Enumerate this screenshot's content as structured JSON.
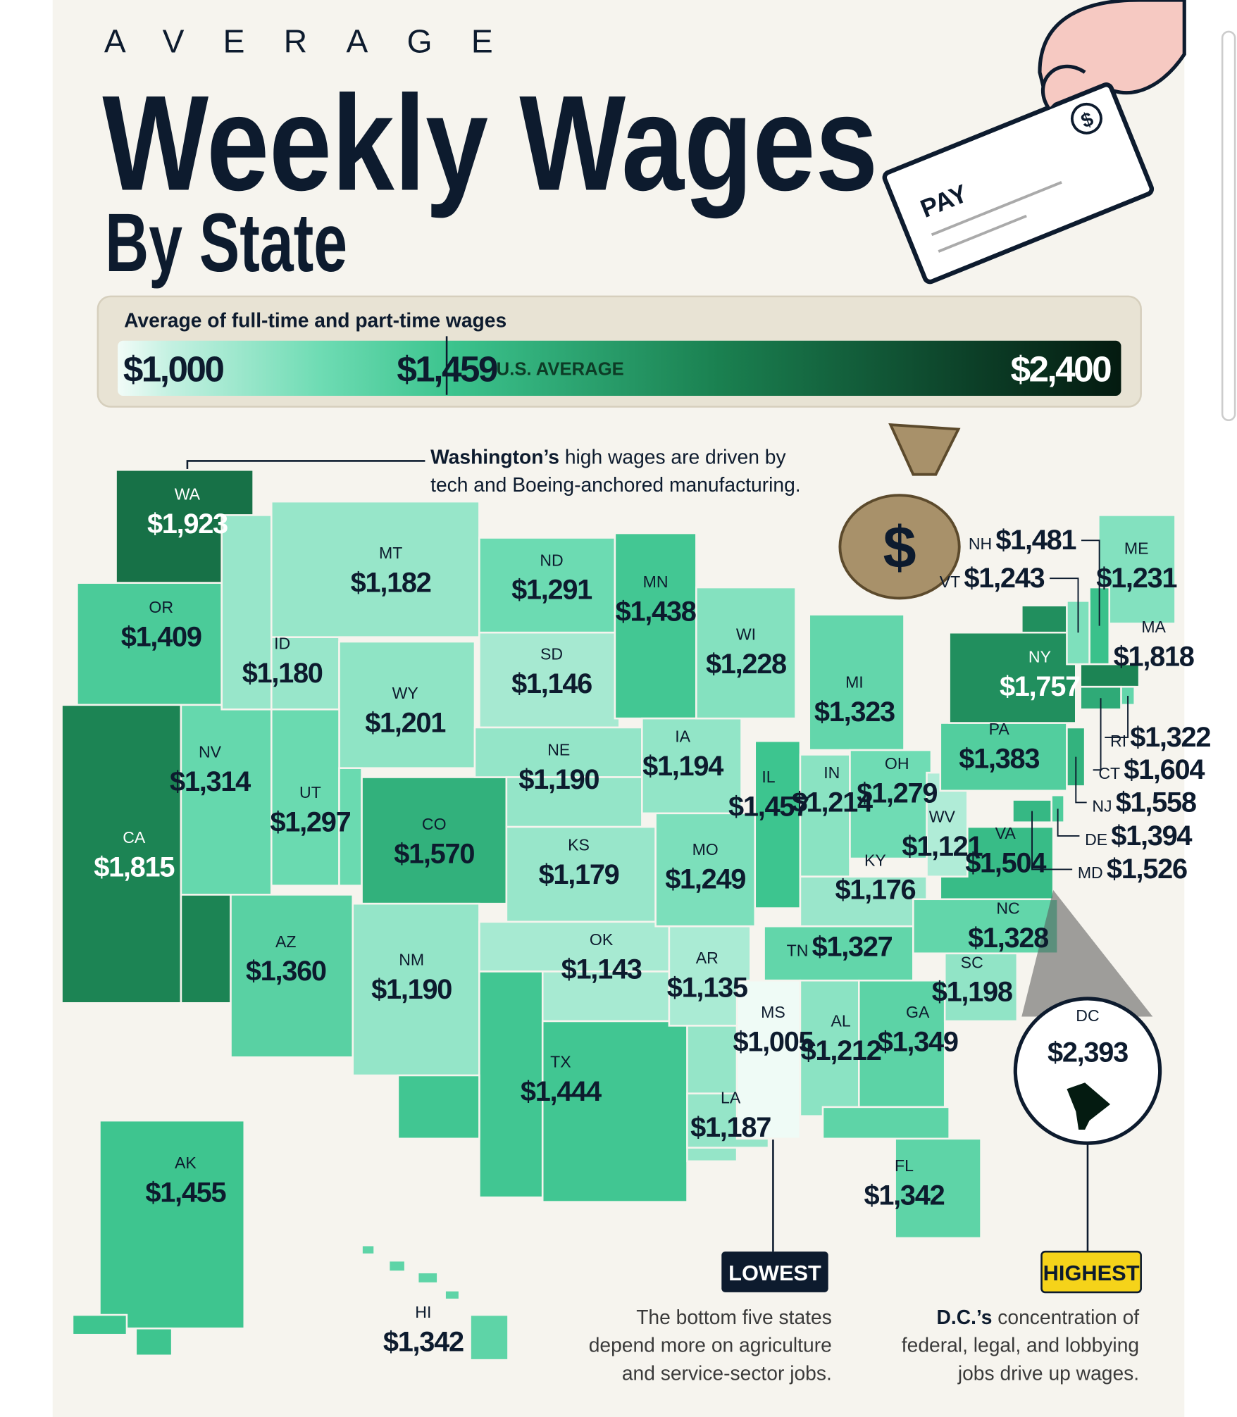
{
  "header": {
    "kicker": "AVERAGE",
    "title": "Weekly Wages",
    "subtitle": "By State"
  },
  "illustration": {
    "check_label": "PAY",
    "check_symbol": "$",
    "bag_symbol": "$"
  },
  "legend": {
    "title": "Average of full-time and part-time wages",
    "ticks": [
      {
        "value": 1000,
        "label": "$1,000"
      },
      {
        "value": 1459,
        "label": "$1,459"
      },
      {
        "value": 2400,
        "label": "$2,400"
      }
    ],
    "average_label": "U.S. AVERAGE"
  },
  "annotations": {
    "washington": {
      "bold": "Washington’s",
      "lines": [
        "high wages are driven by",
        "tech and Boeing-anchored manufacturing."
      ]
    },
    "lowest": {
      "badge": "LOWEST",
      "lines": [
        "The bottom five states",
        "depend more on agriculture",
        "and service-sector jobs."
      ]
    },
    "highest": {
      "badge": "HIGHEST",
      "bold": "D.C.’s",
      "lines": [
        "concentration of",
        "federal, legal, and lobbying",
        "jobs drive up wages."
      ]
    }
  },
  "states": [
    {
      "abbr": "WA",
      "value": 1923,
      "label": "$1,923"
    },
    {
      "abbr": "OR",
      "value": 1409,
      "label": "$1,409"
    },
    {
      "abbr": "CA",
      "value": 1815,
      "label": "$1,815"
    },
    {
      "abbr": "NV",
      "value": 1314,
      "label": "$1,314"
    },
    {
      "abbr": "ID",
      "value": 1180,
      "label": "$1,180"
    },
    {
      "abbr": "MT",
      "value": 1182,
      "label": "$1,182"
    },
    {
      "abbr": "WY",
      "value": 1201,
      "label": "$1,201"
    },
    {
      "abbr": "UT",
      "value": 1297,
      "label": "$1,297"
    },
    {
      "abbr": "CO",
      "value": 1570,
      "label": "$1,570"
    },
    {
      "abbr": "AZ",
      "value": 1360,
      "label": "$1,360"
    },
    {
      "abbr": "NM",
      "value": 1190,
      "label": "$1,190"
    },
    {
      "abbr": "ND",
      "value": 1291,
      "label": "$1,291"
    },
    {
      "abbr": "SD",
      "value": 1146,
      "label": "$1,146"
    },
    {
      "abbr": "NE",
      "value": 1190,
      "label": "$1,190"
    },
    {
      "abbr": "KS",
      "value": 1179,
      "label": "$1,179"
    },
    {
      "abbr": "OK",
      "value": 1143,
      "label": "$1,143"
    },
    {
      "abbr": "TX",
      "value": 1444,
      "label": "$1,444"
    },
    {
      "abbr": "MN",
      "value": 1438,
      "label": "$1,438"
    },
    {
      "abbr": "IA",
      "value": 1194,
      "label": "$1,194"
    },
    {
      "abbr": "MO",
      "value": 1249,
      "label": "$1,249"
    },
    {
      "abbr": "AR",
      "value": 1135,
      "label": "$1,135"
    },
    {
      "abbr": "LA",
      "value": 1187,
      "label": "$1,187"
    },
    {
      "abbr": "WI",
      "value": 1228,
      "label": "$1,228"
    },
    {
      "abbr": "IL",
      "value": 1457,
      "label": "$1,457"
    },
    {
      "abbr": "MI",
      "value": 1323,
      "label": "$1,323"
    },
    {
      "abbr": "IN",
      "value": 1214,
      "label": "$1,214"
    },
    {
      "abbr": "OH",
      "value": 1279,
      "label": "$1,279"
    },
    {
      "abbr": "KY",
      "value": 1176,
      "label": "$1,176"
    },
    {
      "abbr": "TN",
      "value": 1327,
      "label": "$1,327"
    },
    {
      "abbr": "MS",
      "value": 1005,
      "label": "$1,005"
    },
    {
      "abbr": "AL",
      "value": 1212,
      "label": "$1,212"
    },
    {
      "abbr": "GA",
      "value": 1349,
      "label": "$1,349"
    },
    {
      "abbr": "FL",
      "value": 1342,
      "label": "$1,342"
    },
    {
      "abbr": "SC",
      "value": 1198,
      "label": "$1,198"
    },
    {
      "abbr": "NC",
      "value": 1328,
      "label": "$1,328"
    },
    {
      "abbr": "VA",
      "value": 1504,
      "label": "$1,504"
    },
    {
      "abbr": "WV",
      "value": 1121,
      "label": "$1,121"
    },
    {
      "abbr": "PA",
      "value": 1383,
      "label": "$1,383"
    },
    {
      "abbr": "NY",
      "value": 1757,
      "label": "$1,757"
    },
    {
      "abbr": "ME",
      "value": 1231,
      "label": "$1,231"
    },
    {
      "abbr": "NH",
      "value": 1481,
      "label": "$1,481"
    },
    {
      "abbr": "VT",
      "value": 1243,
      "label": "$1,243"
    },
    {
      "abbr": "MA",
      "value": 1818,
      "label": "$1,818"
    },
    {
      "abbr": "RI",
      "value": 1322,
      "label": "$1,322"
    },
    {
      "abbr": "CT",
      "value": 1604,
      "label": "$1,604"
    },
    {
      "abbr": "NJ",
      "value": 1558,
      "label": "$1,558"
    },
    {
      "abbr": "DE",
      "value": 1394,
      "label": "$1,394"
    },
    {
      "abbr": "MD",
      "value": 1526,
      "label": "$1,526"
    },
    {
      "abbr": "DC",
      "value": 2393,
      "label": "$2,393"
    },
    {
      "abbr": "AK",
      "value": 1455,
      "label": "$1,455"
    },
    {
      "abbr": "HI",
      "value": 1342,
      "label": "$1,342"
    }
  ]
}
